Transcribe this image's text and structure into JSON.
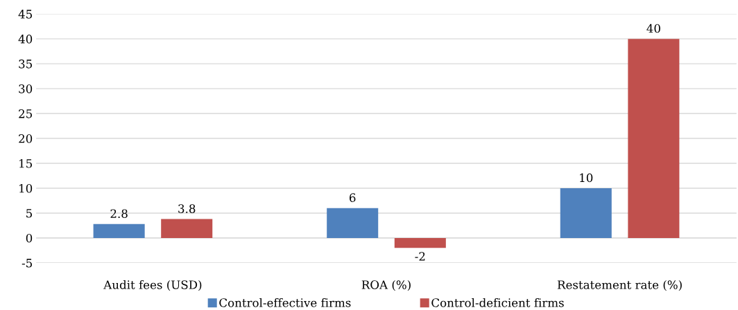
{
  "chart_data": {
    "type": "bar",
    "categories": [
      "Audit fees (USD)",
      "ROA (%)",
      "Restatement rate (%)"
    ],
    "series": [
      {
        "name": "Control-effective firms",
        "color": "#4f81bd",
        "values": [
          2.8,
          6,
          10
        ]
      },
      {
        "name": "Control-deficient firms",
        "color": "#c0504d",
        "values": [
          3.8,
          -2,
          40
        ]
      }
    ],
    "ylim": [
      -5,
      45
    ],
    "yticks": [
      -5,
      0,
      5,
      10,
      15,
      20,
      25,
      30,
      35,
      40,
      45
    ],
    "grid": "y",
    "legend": "bottom",
    "data_labels": true
  }
}
